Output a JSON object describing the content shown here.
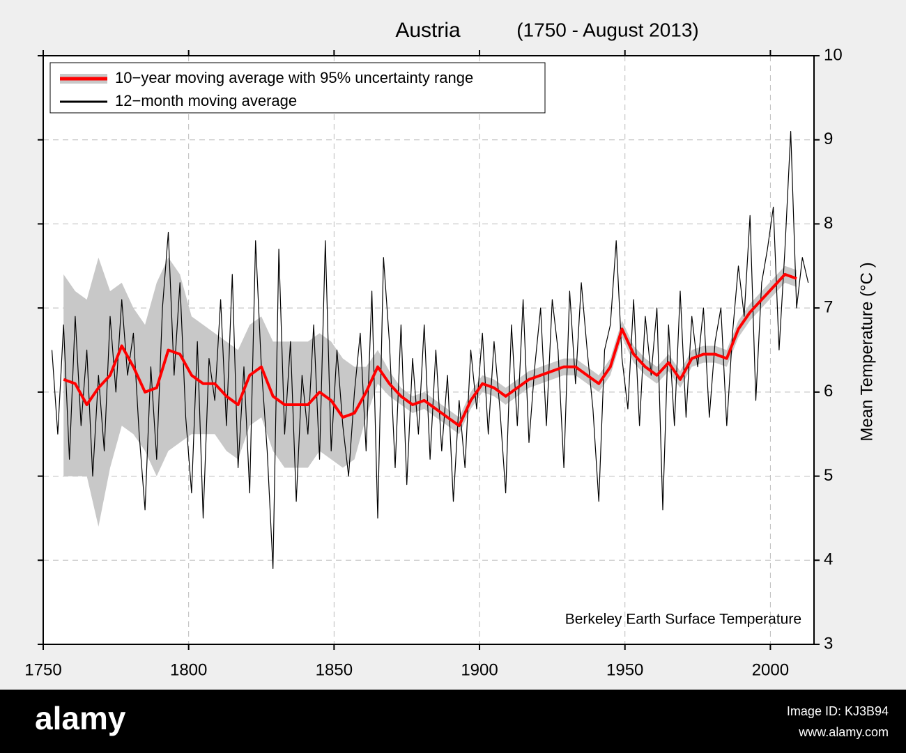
{
  "chart_data": {
    "type": "line",
    "title": "Austria",
    "subtitle": "(1750 - August 2013)",
    "y_label": "Mean Temperature (°C )",
    "y_axis_side": "right",
    "annotation": "Berkeley Earth Surface Temperature",
    "xlim": [
      1750,
      2015
    ],
    "xticks": [
      1750,
      1800,
      1850,
      1900,
      1950,
      2000
    ],
    "ylim": [
      3,
      10
    ],
    "yticks": [
      3,
      4,
      5,
      6,
      7,
      8,
      9,
      10
    ],
    "grid": true,
    "legend_position": "upper left",
    "series": [
      {
        "name": "10−year moving average with 95% uncertainty range",
        "color": "#ff0000",
        "band_color": "#c8c8c8",
        "x": [
          1757,
          1761,
          1765,
          1769,
          1773,
          1777,
          1781,
          1785,
          1789,
          1793,
          1797,
          1801,
          1805,
          1809,
          1813,
          1817,
          1821,
          1825,
          1829,
          1833,
          1837,
          1841,
          1845,
          1849,
          1853,
          1857,
          1861,
          1865,
          1869,
          1873,
          1877,
          1881,
          1885,
          1889,
          1893,
          1897,
          1901,
          1905,
          1909,
          1913,
          1917,
          1921,
          1925,
          1929,
          1933,
          1937,
          1941,
          1945,
          1949,
          1953,
          1957,
          1961,
          1965,
          1969,
          1973,
          1977,
          1981,
          1985,
          1989,
          1993,
          1997,
          2001,
          2005,
          2009
        ],
        "values": [
          6.15,
          6.1,
          5.85,
          6.05,
          6.2,
          6.55,
          6.3,
          6.0,
          6.05,
          6.5,
          6.45,
          6.2,
          6.1,
          6.1,
          5.95,
          5.85,
          6.2,
          6.3,
          5.95,
          5.85,
          5.85,
          5.85,
          6.0,
          5.9,
          5.7,
          5.75,
          6.0,
          6.3,
          6.1,
          5.95,
          5.85,
          5.9,
          5.8,
          5.7,
          5.6,
          5.9,
          6.1,
          6.05,
          5.95,
          6.05,
          6.15,
          6.2,
          6.25,
          6.3,
          6.3,
          6.2,
          6.1,
          6.3,
          6.75,
          6.45,
          6.3,
          6.2,
          6.35,
          6.15,
          6.4,
          6.45,
          6.45,
          6.4,
          6.75,
          6.95,
          7.1,
          7.25,
          7.4,
          7.35
        ],
        "upper": [
          7.4,
          7.2,
          7.1,
          7.6,
          7.2,
          7.3,
          7.0,
          6.8,
          7.3,
          7.6,
          7.4,
          6.9,
          6.8,
          6.7,
          6.6,
          6.5,
          6.8,
          6.9,
          6.6,
          6.6,
          6.6,
          6.6,
          6.7,
          6.6,
          6.4,
          6.3,
          6.3,
          6.5,
          6.25,
          6.05,
          5.95,
          6.0,
          5.9,
          5.8,
          5.7,
          6.0,
          6.2,
          6.15,
          6.05,
          6.15,
          6.25,
          6.3,
          6.35,
          6.4,
          6.4,
          6.3,
          6.2,
          6.4,
          6.85,
          6.55,
          6.4,
          6.3,
          6.45,
          6.25,
          6.5,
          6.55,
          6.55,
          6.5,
          6.85,
          7.05,
          7.2,
          7.35,
          7.5,
          7.45
        ],
        "lower": [
          5.0,
          5.0,
          5.0,
          4.4,
          5.1,
          5.6,
          5.5,
          5.3,
          5.0,
          5.3,
          5.4,
          5.5,
          5.5,
          5.5,
          5.3,
          5.2,
          5.6,
          5.7,
          5.3,
          5.1,
          5.1,
          5.1,
          5.3,
          5.2,
          5.1,
          5.2,
          5.7,
          6.1,
          5.95,
          5.85,
          5.75,
          5.8,
          5.7,
          5.6,
          5.5,
          5.8,
          6.0,
          5.95,
          5.85,
          5.95,
          6.05,
          6.1,
          6.15,
          6.2,
          6.2,
          6.1,
          6.0,
          6.2,
          6.65,
          6.35,
          6.2,
          6.1,
          6.25,
          6.05,
          6.3,
          6.35,
          6.35,
          6.3,
          6.65,
          6.85,
          7.0,
          7.15,
          7.3,
          7.25
        ]
      },
      {
        "name": "12−month moving average",
        "color": "#000000",
        "x": [
          1753,
          1755,
          1757,
          1759,
          1761,
          1763,
          1765,
          1767,
          1769,
          1771,
          1773,
          1775,
          1777,
          1779,
          1781,
          1783,
          1785,
          1787,
          1789,
          1791,
          1793,
          1795,
          1797,
          1799,
          1801,
          1803,
          1805,
          1807,
          1809,
          1811,
          1813,
          1815,
          1817,
          1819,
          1821,
          1823,
          1825,
          1827,
          1829,
          1831,
          1833,
          1835,
          1837,
          1839,
          1841,
          1843,
          1845,
          1847,
          1849,
          1851,
          1853,
          1855,
          1857,
          1859,
          1861,
          1863,
          1865,
          1867,
          1869,
          1871,
          1873,
          1875,
          1877,
          1879,
          1881,
          1883,
          1885,
          1887,
          1889,
          1891,
          1893,
          1895,
          1897,
          1899,
          1901,
          1903,
          1905,
          1907,
          1909,
          1911,
          1913,
          1915,
          1917,
          1919,
          1921,
          1923,
          1925,
          1927,
          1929,
          1931,
          1933,
          1935,
          1937,
          1939,
          1941,
          1943,
          1945,
          1947,
          1949,
          1951,
          1953,
          1955,
          1957,
          1959,
          1961,
          1963,
          1965,
          1967,
          1969,
          1971,
          1973,
          1975,
          1977,
          1979,
          1981,
          1983,
          1985,
          1987,
          1989,
          1991,
          1993,
          1995,
          1997,
          1999,
          2001,
          2003,
          2005,
          2007,
          2009,
          2011,
          2013
        ],
        "values": [
          6.5,
          5.5,
          6.8,
          5.2,
          6.9,
          5.6,
          6.5,
          5.0,
          6.2,
          5.3,
          6.9,
          6.0,
          7.1,
          6.2,
          6.7,
          5.5,
          4.6,
          6.3,
          5.2,
          7.0,
          7.9,
          6.2,
          7.3,
          5.7,
          4.8,
          6.6,
          4.5,
          6.4,
          5.9,
          7.1,
          5.6,
          7.4,
          5.1,
          6.3,
          4.8,
          7.8,
          6.3,
          5.3,
          3.9,
          7.7,
          5.5,
          6.6,
          4.7,
          6.2,
          5.5,
          6.8,
          5.2,
          7.8,
          5.3,
          6.5,
          5.6,
          5.0,
          6.0,
          6.7,
          5.3,
          7.2,
          4.5,
          7.6,
          6.6,
          5.1,
          6.8,
          4.9,
          6.4,
          5.5,
          6.8,
          5.2,
          6.5,
          5.3,
          6.2,
          4.7,
          5.9,
          5.1,
          6.5,
          5.8,
          6.7,
          5.5,
          6.6,
          5.8,
          4.8,
          6.8,
          5.6,
          7.1,
          5.4,
          6.3,
          7.0,
          5.6,
          7.1,
          6.5,
          5.1,
          7.2,
          6.1,
          7.3,
          6.5,
          5.8,
          4.7,
          6.5,
          6.8,
          7.8,
          6.4,
          5.8,
          7.1,
          5.6,
          6.9,
          6.2,
          7.0,
          4.6,
          6.8,
          5.6,
          7.2,
          5.7,
          6.9,
          6.3,
          7.0,
          5.7,
          6.6,
          7.0,
          5.6,
          6.7,
          7.5,
          6.9,
          8.1,
          5.9,
          7.3,
          7.7,
          8.2,
          6.5,
          7.7,
          9.1,
          7.0,
          7.6,
          7.3
        ]
      }
    ]
  },
  "watermark": {
    "brand": "alamy",
    "image_id": "Image ID: KJ3B94",
    "url": "www.alamy.com"
  }
}
